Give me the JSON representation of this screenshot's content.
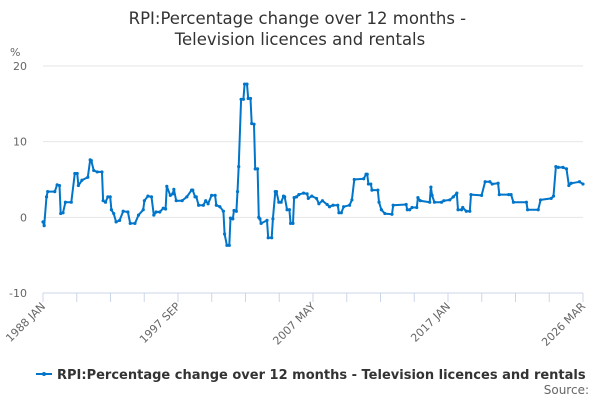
{
  "chart_data": {
    "type": "line",
    "title": "RPI:Percentage change over 12 months - Television licences and rentals",
    "ylabel": "%",
    "xlabel": "",
    "ylim": [
      -10,
      20
    ],
    "yticks": [
      "20",
      "10",
      "0",
      "-10"
    ],
    "xlim": [
      "1988-01",
      "2026-03"
    ],
    "xticks": [
      "1988 JAN",
      "1997 SEP",
      "2007 MAY",
      "2017 JAN",
      "2026 MAR"
    ],
    "grid": true,
    "legend_position": "bottom",
    "color": "#0075c9",
    "source_label": "Source:",
    "series": [
      {
        "name": "RPI:Percentage change over 12 months - Television licences and rentals",
        "points": [
          [
            "1988-01",
            -0.6
          ],
          [
            "1988-02",
            -1.1
          ],
          [
            "1988-04",
            2.7
          ],
          [
            "1988-05",
            3.4
          ],
          [
            "1988-11",
            3.4
          ],
          [
            "1989-01",
            4.3
          ],
          [
            "1989-03",
            4.2
          ],
          [
            "1989-04",
            0.5
          ],
          [
            "1989-06",
            0.6
          ],
          [
            "1989-08",
            2.0
          ],
          [
            "1990-01",
            2.0
          ],
          [
            "1990-04",
            5.8
          ],
          [
            "1990-06",
            5.8
          ],
          [
            "1990-07",
            4.2
          ],
          [
            "1990-10",
            4.9
          ],
          [
            "1991-03",
            5.3
          ],
          [
            "1991-05",
            7.6
          ],
          [
            "1991-06",
            7.5
          ],
          [
            "1991-08",
            6.2
          ],
          [
            "1991-11",
            6.0
          ],
          [
            "1992-03",
            6.0
          ],
          [
            "1992-04",
            2.2
          ],
          [
            "1992-06",
            2.0
          ],
          [
            "1992-08",
            2.7
          ],
          [
            "1992-10",
            2.7
          ],
          [
            "1992-11",
            1.0
          ],
          [
            "1993-01",
            0.5
          ],
          [
            "1993-03",
            -0.6
          ],
          [
            "1993-06",
            -0.4
          ],
          [
            "1993-09",
            0.8
          ],
          [
            "1994-01",
            0.7
          ],
          [
            "1994-03",
            -0.8
          ],
          [
            "1994-07",
            -0.8
          ],
          [
            "1994-10",
            0.3
          ],
          [
            "1995-02",
            1.0
          ],
          [
            "1995-03",
            2.2
          ],
          [
            "1995-06",
            2.8
          ],
          [
            "1995-09",
            2.7
          ],
          [
            "1995-11",
            0.3
          ],
          [
            "1996-01",
            0.7
          ],
          [
            "1996-04",
            0.7
          ],
          [
            "1996-07",
            1.2
          ],
          [
            "1996-09",
            1.1
          ],
          [
            "1996-10",
            4.1
          ],
          [
            "1997-01",
            2.9
          ],
          [
            "1997-03",
            3.1
          ],
          [
            "1997-04",
            3.7
          ],
          [
            "1997-06",
            2.2
          ],
          [
            "1997-11",
            2.2
          ],
          [
            "1998-03",
            2.7
          ],
          [
            "1998-07",
            3.6
          ],
          [
            "1998-08",
            3.6
          ],
          [
            "1998-10",
            2.7
          ],
          [
            "1998-11",
            2.7
          ],
          [
            "1999-01",
            1.6
          ],
          [
            "1999-05",
            1.6
          ],
          [
            "1999-07",
            2.2
          ],
          [
            "1999-09",
            1.8
          ],
          [
            "1999-12",
            2.9
          ],
          [
            "2000-03",
            2.9
          ],
          [
            "2000-04",
            1.6
          ],
          [
            "2000-07",
            1.4
          ],
          [
            "2000-10",
            0.8
          ],
          [
            "2000-11",
            -2.2
          ],
          [
            "2001-01",
            -3.7
          ],
          [
            "2001-03",
            -3.7
          ],
          [
            "2001-04",
            -0.1
          ],
          [
            "2001-06",
            -0.2
          ],
          [
            "2001-07",
            0.9
          ],
          [
            "2001-09",
            0.8
          ],
          [
            "2001-10",
            3.4
          ],
          [
            "2001-11",
            6.7
          ],
          [
            "2002-01",
            15.6
          ],
          [
            "2002-03",
            15.6
          ],
          [
            "2002-04",
            17.6
          ],
          [
            "2002-06",
            17.6
          ],
          [
            "2002-07",
            15.7
          ],
          [
            "2002-09",
            15.7
          ],
          [
            "2002-10",
            12.4
          ],
          [
            "2002-12",
            12.3
          ],
          [
            "2003-01",
            6.4
          ],
          [
            "2003-03",
            6.4
          ],
          [
            "2003-04",
            0.0
          ],
          [
            "2003-05",
            -0.2
          ],
          [
            "2003-06",
            -0.8
          ],
          [
            "2003-11",
            -0.4
          ],
          [
            "2003-12",
            -2.7
          ],
          [
            "2004-03",
            -2.7
          ],
          [
            "2004-04",
            -0.2
          ],
          [
            "2004-06",
            3.4
          ],
          [
            "2004-07",
            3.4
          ],
          [
            "2004-09",
            2.0
          ],
          [
            "2004-11",
            2.0
          ],
          [
            "2005-01",
            2.8
          ],
          [
            "2005-02",
            2.7
          ],
          [
            "2005-04",
            1.0
          ],
          [
            "2005-06",
            1.0
          ],
          [
            "2005-07",
            -0.8
          ],
          [
            "2005-09",
            -0.8
          ],
          [
            "2005-10",
            2.6
          ],
          [
            "2005-12",
            2.7
          ],
          [
            "2006-02",
            3.0
          ],
          [
            "2006-06",
            3.2
          ],
          [
            "2006-09",
            3.1
          ],
          [
            "2006-10",
            2.5
          ],
          [
            "2007-01",
            2.8
          ],
          [
            "2007-05",
            2.5
          ],
          [
            "2007-07",
            1.8
          ],
          [
            "2007-10",
            2.2
          ],
          [
            "2008-02",
            1.7
          ],
          [
            "2008-04",
            1.4
          ],
          [
            "2008-07",
            1.6
          ],
          [
            "2008-11",
            1.6
          ],
          [
            "2008-12",
            0.6
          ],
          [
            "2009-02",
            0.6
          ],
          [
            "2009-04",
            1.4
          ],
          [
            "2009-09",
            1.6
          ],
          [
            "2009-11",
            2.3
          ],
          [
            "2010-01",
            5.0
          ],
          [
            "2010-09",
            5.1
          ],
          [
            "2010-11",
            5.7
          ],
          [
            "2010-12",
            5.7
          ],
          [
            "2011-01",
            4.4
          ],
          [
            "2011-03",
            4.4
          ],
          [
            "2011-04",
            3.6
          ],
          [
            "2011-09",
            3.6
          ],
          [
            "2011-10",
            2.0
          ],
          [
            "2011-12",
            1.0
          ],
          [
            "2012-03",
            0.5
          ],
          [
            "2012-09",
            0.4
          ],
          [
            "2012-10",
            1.6
          ],
          [
            "2013-09",
            1.7
          ],
          [
            "2013-10",
            1.0
          ],
          [
            "2013-12",
            1.0
          ],
          [
            "2014-02",
            1.3
          ],
          [
            "2014-06",
            1.3
          ],
          [
            "2014-07",
            2.6
          ],
          [
            "2014-09",
            2.2
          ],
          [
            "2015-05",
            2.0
          ],
          [
            "2015-06",
            4.0
          ],
          [
            "2015-07",
            2.9
          ],
          [
            "2015-09",
            2.0
          ],
          [
            "2016-03",
            2.0
          ],
          [
            "2016-05",
            2.2
          ],
          [
            "2016-10",
            2.3
          ],
          [
            "2017-01",
            2.7
          ],
          [
            "2017-04",
            3.2
          ],
          [
            "2017-05",
            1.0
          ],
          [
            "2017-08",
            1.0
          ],
          [
            "2017-09",
            1.3
          ],
          [
            "2017-12",
            0.8
          ],
          [
            "2018-03",
            0.8
          ],
          [
            "2018-04",
            3.0
          ],
          [
            "2019-01",
            2.9
          ],
          [
            "2019-04",
            4.7
          ],
          [
            "2019-08",
            4.7
          ],
          [
            "2019-10",
            4.4
          ],
          [
            "2020-03",
            4.5
          ],
          [
            "2020-04",
            3.0
          ],
          [
            "2020-12",
            3.0
          ],
          [
            "2021-02",
            3.0
          ],
          [
            "2021-04",
            2.0
          ],
          [
            "2022-03",
            2.0
          ],
          [
            "2022-04",
            1.0
          ],
          [
            "2023-01",
            1.0
          ],
          [
            "2023-03",
            2.3
          ],
          [
            "2023-12",
            2.5
          ],
          [
            "2024-02",
            2.8
          ],
          [
            "2024-04",
            6.7
          ],
          [
            "2024-06",
            6.6
          ],
          [
            "2024-10",
            6.6
          ],
          [
            "2025-01",
            6.4
          ],
          [
            "2025-03",
            4.2
          ],
          [
            "2025-05",
            4.5
          ],
          [
            "2025-12",
            4.7
          ],
          [
            "2026-03",
            4.4
          ]
        ]
      }
    ]
  }
}
